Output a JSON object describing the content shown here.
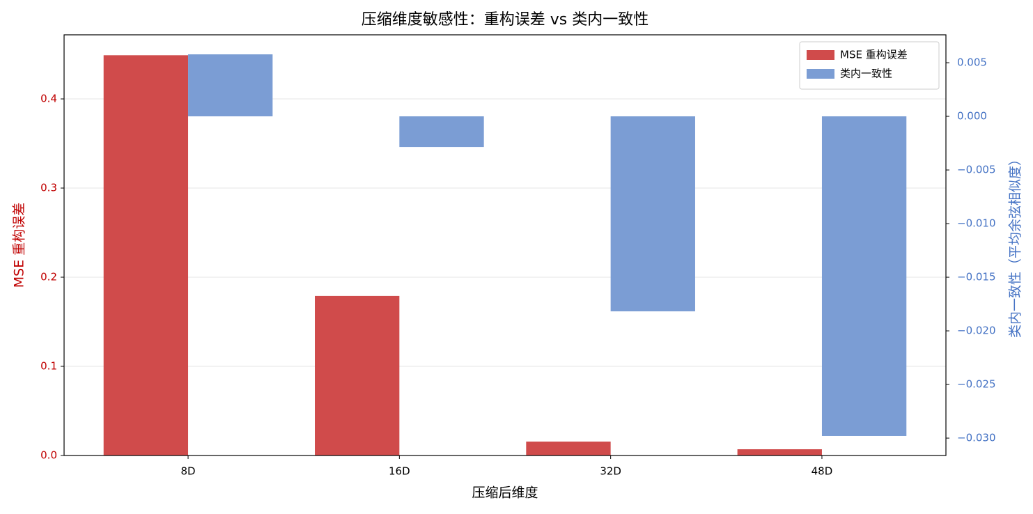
{
  "chart_data": {
    "type": "bar",
    "title": "压缩维度敏感性：重构误差 vs 类内一致性",
    "x_label": "压缩后维度",
    "y_label": "MSE 重构误差",
    "y2_label": "类内一致性（平均余弦相似度）",
    "categories": [
      "8D",
      "16D",
      "32D",
      "48D"
    ],
    "series": [
      {
        "name": "MSE 重构误差",
        "color": "#d04b4b",
        "values": [
          0.449,
          0.179,
          0.0156,
          0.007
        ]
      },
      {
        "name": "类内一致性",
        "color": "#7b9dd4",
        "axis": "y2",
        "values": [
          0.00578,
          -0.00286,
          -0.01818,
          -0.0298
        ]
      }
    ],
    "ylim": [
      0,
      0.4719
    ],
    "yticks": [
      {
        "value": 0,
        "label": "0.0"
      },
      0.1,
      0.2,
      0.3,
      0.4
    ],
    "y2lim": [
      -0.03162,
      0.0076
    ],
    "y2ticks": [
      {
        "value": 0.005,
        "label": "0.005"
      },
      {
        "value": 0,
        "label": "0.000"
      },
      {
        "value": -0.005,
        "label": "−0.005"
      },
      {
        "value": -0.01,
        "label": "−0.010"
      },
      {
        "value": -0.015,
        "label": "−0.015"
      },
      {
        "value": -0.02,
        "label": "−0.020"
      },
      {
        "value": -0.025,
        "label": "−0.025"
      },
      {
        "value": -0.03,
        "label": "−0.030"
      }
    ],
    "y_color": "#c00000",
    "y2_color": "#4472c4",
    "grid": true,
    "legend": "upper right"
  }
}
